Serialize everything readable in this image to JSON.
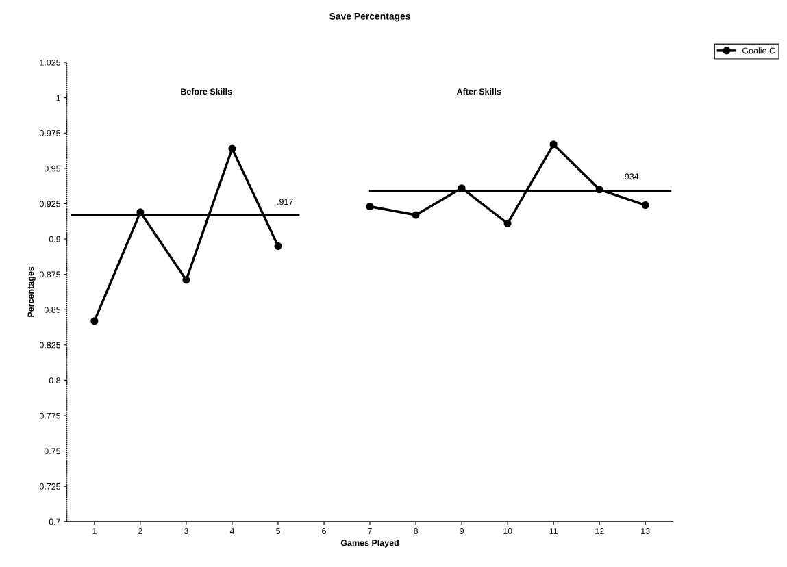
{
  "chart_data": {
    "type": "line",
    "title": "Save Percentages",
    "xlabel": "Games Played",
    "ylabel": "Percentages",
    "x": [
      1,
      2,
      3,
      4,
      5,
      6,
      7,
      8,
      9,
      10,
      11,
      12,
      13
    ],
    "series": [
      {
        "name": "Goalie C",
        "color": "#000000",
        "values": [
          0.842,
          0.919,
          0.871,
          0.964,
          0.895,
          null,
          0.923,
          0.917,
          0.936,
          0.911,
          0.967,
          0.935,
          0.924
        ]
      },
      {
        "color": "#000000",
        "x": [
          0.5,
          5.45
        ],
        "values": [
          0.917,
          0.917
        ],
        "marker": "none"
      },
      {
        "color": "#000000",
        "x": [
          7.0,
          13.55
        ],
        "values": [
          0.934,
          0.934
        ],
        "marker": "none"
      }
    ],
    "annotations": [
      ".917",
      ".934",
      "Before Skills",
      "After Skills"
    ],
    "xlim": [
      0.4,
      13.6
    ],
    "xticks": [
      1,
      2,
      3,
      4,
      5,
      6,
      7,
      8,
      9,
      10,
      11,
      12,
      13
    ],
    "ylim": [
      0.7,
      1.025
    ],
    "yticks": [
      0.7,
      0.725,
      0.75,
      0.775,
      0.8,
      0.825,
      0.85,
      0.875,
      0.9,
      0.925,
      0.95,
      0.975,
      1,
      1.025
    ],
    "marker": "circle",
    "line_style": "solid",
    "grid": false,
    "legend": "top right"
  }
}
